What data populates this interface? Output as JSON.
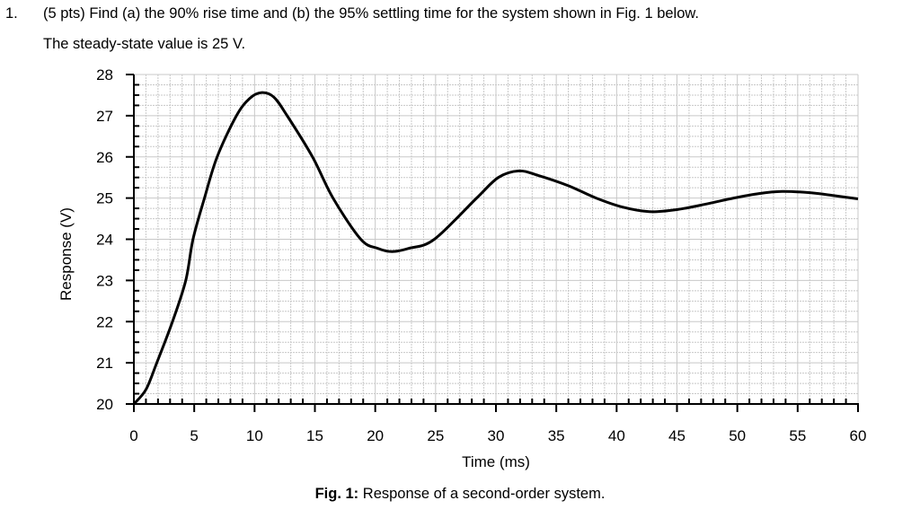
{
  "question": {
    "number": "1.",
    "line1": "(5 pts) Find (a) the 90% rise time and (b) the 95% settling time for the system shown in Fig. 1 below.",
    "line2": "The steady-state value is 25 V."
  },
  "caption": {
    "label": "Fig. 1:",
    "text": " Response of a second-order system."
  },
  "chart_data": {
    "type": "line",
    "title": "",
    "xlabel": "Time (ms)",
    "ylabel": "Response (V)",
    "xlim": [
      0,
      60
    ],
    "ylim": [
      20,
      28
    ],
    "xticks": [
      "0",
      "5",
      "10",
      "15",
      "20",
      "25",
      "30",
      "35",
      "40",
      "45",
      "50",
      "55",
      "60"
    ],
    "yticks": [
      "20",
      "21",
      "22",
      "23",
      "24",
      "25",
      "26",
      "27",
      "28"
    ],
    "grid": true,
    "line_color": "#000000",
    "grid_color": "#c8c8c8",
    "series": [
      {
        "x": [
          0,
          1,
          1.9,
          3.2,
          4.3,
          4.9,
          5.85,
          6.9,
          8.5,
          9.6,
          10.6,
          11.6,
          12.7,
          14.8,
          16.5,
          18.8,
          20.2,
          21.4,
          22.8,
          24.9,
          28.4,
          30.2,
          31.9,
          33.5,
          36,
          38.3,
          40.5,
          42.7,
          45,
          47.5,
          49.7,
          51.8,
          53.7,
          56,
          58,
          60
        ],
        "y": [
          20,
          20.35,
          21,
          22,
          23,
          24,
          25,
          26,
          27,
          27.42,
          27.56,
          27.45,
          27,
          26,
          25,
          24,
          23.78,
          23.7,
          23.78,
          24,
          25,
          25.5,
          25.66,
          25.55,
          25.3,
          25,
          24.78,
          24.67,
          24.72,
          24.86,
          25,
          25.11,
          25.16,
          25.13,
          25.06,
          24.98
        ]
      }
    ]
  }
}
